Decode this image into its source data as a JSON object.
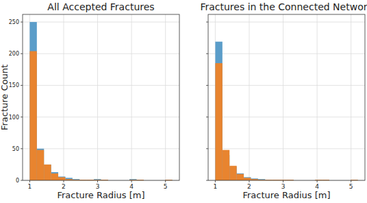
{
  "chart_data": [
    {
      "type": "histogram",
      "title": "All Accepted Fractures",
      "x_label": "Fracture Radius [m]",
      "y_label": "Fracture Count",
      "bins": [
        1,
        1.21,
        1.42,
        1.63,
        1.84,
        2.05,
        2.26,
        2.47,
        2.68,
        2.89,
        3.1,
        3.31,
        3.52,
        3.73,
        3.94,
        4.15,
        4.36,
        4.57,
        4.78,
        4.99,
        5.2
      ],
      "series": [
        {
          "color": "#5b9dc9",
          "values": [
            250,
            50,
            25,
            13,
            6,
            4,
            2,
            1,
            1,
            2,
            1,
            0,
            0,
            0,
            2,
            1,
            0,
            0,
            0,
            1
          ]
        },
        {
          "color": "#e8842f",
          "values": [
            204,
            48,
            25,
            11,
            5,
            2,
            1,
            1,
            1,
            1,
            1,
            0,
            0,
            0,
            1,
            1,
            0,
            0,
            0,
            1
          ]
        }
      ],
      "xlim": [
        0.79,
        5.41
      ],
      "ylim": [
        0,
        262
      ],
      "xticks": [
        1,
        2,
        3,
        4,
        5
      ],
      "yticks": [
        0,
        50,
        100,
        150,
        200,
        250
      ],
      "grid": true
    },
    {
      "type": "histogram",
      "title": "Fractures in the Connected Network",
      "x_label": "Fracture Radius [m]",
      "bins": [
        1,
        1.21,
        1.42,
        1.63,
        1.84,
        2.05,
        2.26,
        2.47,
        2.68,
        2.89,
        3.1,
        3.31,
        3.52,
        3.73,
        3.94,
        4.15,
        4.36,
        4.57,
        4.78,
        4.99,
        5.2
      ],
      "series": [
        {
          "color": "#5b9dc9",
          "values": [
            219,
            40,
            22,
            11,
            5,
            3,
            2,
            1,
            1,
            1,
            1,
            0,
            0,
            0,
            1,
            1,
            0,
            0,
            0,
            1
          ]
        },
        {
          "color": "#e8842f",
          "values": [
            185,
            48,
            23,
            10,
            4,
            2,
            1,
            1,
            1,
            1,
            1,
            0,
            0,
            0,
            1,
            1,
            0,
            0,
            0,
            1
          ]
        }
      ],
      "xlim": [
        0.79,
        5.41
      ],
      "ylim": [
        0,
        262
      ],
      "xticks": [
        1,
        2,
        3,
        4,
        5
      ],
      "yticks": [
        0,
        50,
        100,
        150,
        200,
        250
      ],
      "grid": true,
      "tick_labels": "x"
    }
  ]
}
